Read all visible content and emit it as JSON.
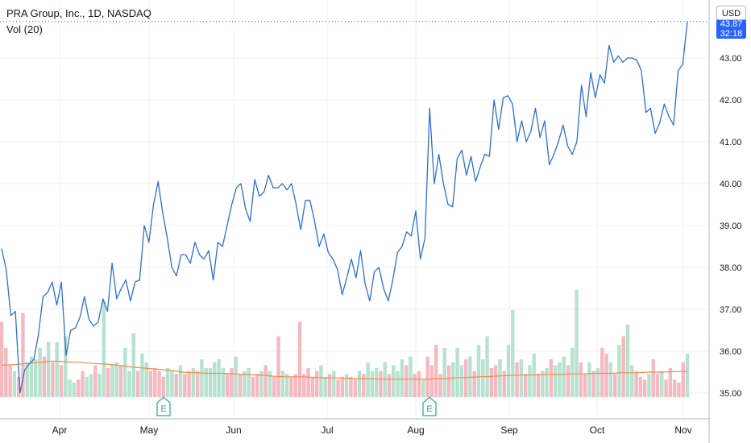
{
  "header": {
    "symbol_line": "PRA Group, Inc., 1D, NASDAQ",
    "indicator_line": "Vol (20)"
  },
  "price_scale": {
    "currency": "USD",
    "last_price": "43.87",
    "countdown": "32:18"
  },
  "colors": {
    "price_line": "#2f6ed4",
    "volume_up": "#b7e2cf",
    "volume_down": "#f7b9c0",
    "volume_ma": "#f08a4b",
    "grid": "#eef0f3",
    "axis_text": "#131722",
    "last_price_bg": "#2962ff",
    "earnings_marker": "#26a69a"
  },
  "chart_data": {
    "type": "line",
    "ylim": [
      34.5,
      44.6
    ],
    "y_ticks": [
      "35.00",
      "36.00",
      "37.00",
      "38.00",
      "39.00",
      "40.00",
      "41.00",
      "42.00",
      "43.00"
    ],
    "x_ticks": [
      "Apr",
      "May",
      "Jun",
      "Jul",
      "Aug",
      "Sep",
      "Oct",
      "Nov"
    ],
    "earnings_markers": [
      "E",
      "E"
    ],
    "series": [
      {
        "values": [
          38.45,
          37.95,
          36.85,
          36.95,
          35.0,
          35.55,
          35.7,
          35.8,
          36.4,
          37.3,
          37.4,
          37.65,
          37.1,
          37.65,
          35.9,
          36.5,
          36.55,
          36.8,
          37.3,
          36.75,
          36.6,
          36.7,
          37.25,
          36.95,
          38.1,
          37.25,
          37.5,
          37.7,
          37.2,
          37.65,
          37.7,
          39.0,
          38.6,
          39.5,
          40.05,
          39.3,
          38.7,
          38.0,
          37.8,
          38.3,
          38.3,
          38.1,
          38.6,
          38.3,
          38.2,
          38.4,
          37.7,
          38.6,
          38.5,
          39.0,
          39.5,
          39.9,
          40.0,
          39.4,
          39.1,
          40.1,
          39.7,
          39.8,
          40.2,
          39.9,
          39.9,
          40.0,
          39.85,
          40.0,
          39.5,
          38.9,
          39.6,
          39.6,
          39.1,
          38.5,
          38.8,
          38.35,
          38.2,
          37.95,
          37.35,
          37.75,
          38.2,
          37.75,
          38.4,
          37.6,
          37.2,
          37.9,
          38.0,
          37.5,
          37.2,
          37.7,
          38.35,
          38.5,
          38.85,
          38.75,
          39.35,
          38.2,
          38.7,
          41.8,
          40.0,
          40.7,
          40.0,
          39.5,
          39.45,
          40.6,
          40.8,
          40.2,
          40.65,
          40.05,
          40.4,
          40.7,
          40.65,
          42.0,
          41.3,
          42.05,
          42.1,
          41.9,
          41.0,
          41.5,
          41.0,
          41.25,
          41.8,
          41.1,
          41.5,
          40.45,
          40.7,
          41.0,
          41.4,
          40.9,
          40.7,
          41.0,
          42.35,
          41.6,
          42.65,
          42.05,
          42.6,
          42.4,
          43.3,
          42.9,
          43.05,
          42.9,
          43.0,
          43.0,
          42.95,
          42.7,
          41.7,
          41.8,
          41.2,
          41.45,
          41.9,
          41.6,
          41.4,
          42.7,
          42.85,
          43.87
        ]
      }
    ],
    "volume": [
      {
        "v": 1.3,
        "d": 1
      },
      {
        "v": 0.85,
        "d": 1
      },
      {
        "v": 0.55,
        "d": 1
      },
      {
        "v": 0.45,
        "d": 0
      },
      {
        "v": 0.35,
        "d": 1
      },
      {
        "v": 1.45,
        "d": 1
      },
      {
        "v": 0.6,
        "d": 0
      },
      {
        "v": 0.7,
        "d": 0
      },
      {
        "v": 0.65,
        "d": 0
      },
      {
        "v": 0.85,
        "d": 0
      },
      {
        "v": 0.7,
        "d": 1
      },
      {
        "v": 0.95,
        "d": 0
      },
      {
        "v": 0.6,
        "d": 1
      },
      {
        "v": 0.95,
        "d": 0
      },
      {
        "v": 0.55,
        "d": 1
      },
      {
        "v": 1.05,
        "d": 0
      },
      {
        "v": 0.3,
        "d": 0
      },
      {
        "v": 0.25,
        "d": 0
      },
      {
        "v": 0.3,
        "d": 1
      },
      {
        "v": 0.45,
        "d": 1
      },
      {
        "v": 0.35,
        "d": 0
      },
      {
        "v": 0.4,
        "d": 0
      },
      {
        "v": 0.55,
        "d": 1
      },
      {
        "v": 0.4,
        "d": 0
      },
      {
        "v": 1.65,
        "d": 0
      },
      {
        "v": 0.5,
        "d": 1
      },
      {
        "v": 0.55,
        "d": 0
      },
      {
        "v": 0.6,
        "d": 0
      },
      {
        "v": 0.55,
        "d": 1
      },
      {
        "v": 0.85,
        "d": 0
      },
      {
        "v": 0.45,
        "d": 0
      },
      {
        "v": 1.1,
        "d": 0
      },
      {
        "v": 0.45,
        "d": 1
      },
      {
        "v": 0.75,
        "d": 0
      },
      {
        "v": 0.6,
        "d": 0
      },
      {
        "v": 0.45,
        "d": 1
      },
      {
        "v": 0.5,
        "d": 1
      },
      {
        "v": 0.45,
        "d": 1
      },
      {
        "v": 0.35,
        "d": 1
      },
      {
        "v": 0.5,
        "d": 0
      },
      {
        "v": 0.45,
        "d": 0
      },
      {
        "v": 0.4,
        "d": 1
      },
      {
        "v": 0.55,
        "d": 0
      },
      {
        "v": 0.4,
        "d": 1
      },
      {
        "v": 0.45,
        "d": 1
      },
      {
        "v": 0.5,
        "d": 0
      },
      {
        "v": 0.45,
        "d": 1
      },
      {
        "v": 0.65,
        "d": 0
      },
      {
        "v": 0.5,
        "d": 0
      },
      {
        "v": 0.5,
        "d": 0
      },
      {
        "v": 0.6,
        "d": 0
      },
      {
        "v": 0.65,
        "d": 0
      },
      {
        "v": 0.5,
        "d": 0
      },
      {
        "v": 0.4,
        "d": 1
      },
      {
        "v": 0.5,
        "d": 1
      },
      {
        "v": 0.7,
        "d": 0
      },
      {
        "v": 0.4,
        "d": 1
      },
      {
        "v": 0.45,
        "d": 0
      },
      {
        "v": 0.5,
        "d": 0
      },
      {
        "v": 0.35,
        "d": 1
      },
      {
        "v": 0.4,
        "d": 1
      },
      {
        "v": 0.45,
        "d": 0
      },
      {
        "v": 0.55,
        "d": 1
      },
      {
        "v": 0.45,
        "d": 0
      },
      {
        "v": 0.35,
        "d": 1
      },
      {
        "v": 1.05,
        "d": 1
      },
      {
        "v": 0.45,
        "d": 0
      },
      {
        "v": 0.4,
        "d": 0
      },
      {
        "v": 0.35,
        "d": 1
      },
      {
        "v": 0.4,
        "d": 1
      },
      {
        "v": 1.3,
        "d": 1
      },
      {
        "v": 0.4,
        "d": 1
      },
      {
        "v": 0.5,
        "d": 1
      },
      {
        "v": 0.35,
        "d": 1
      },
      {
        "v": 0.45,
        "d": 1
      },
      {
        "v": 0.55,
        "d": 0
      },
      {
        "v": 0.35,
        "d": 0
      },
      {
        "v": 0.4,
        "d": 1
      },
      {
        "v": 0.45,
        "d": 0
      },
      {
        "v": 0.3,
        "d": 1
      },
      {
        "v": 0.35,
        "d": 1
      },
      {
        "v": 0.4,
        "d": 0
      },
      {
        "v": 0.35,
        "d": 1
      },
      {
        "v": 0.3,
        "d": 1
      },
      {
        "v": 0.45,
        "d": 0
      },
      {
        "v": 0.4,
        "d": 1
      },
      {
        "v": 0.6,
        "d": 0
      },
      {
        "v": 0.45,
        "d": 0
      },
      {
        "v": 0.5,
        "d": 0
      },
      {
        "v": 0.45,
        "d": 1
      },
      {
        "v": 0.6,
        "d": 0
      },
      {
        "v": 0.4,
        "d": 1
      },
      {
        "v": 0.55,
        "d": 0
      },
      {
        "v": 0.45,
        "d": 0
      },
      {
        "v": 0.65,
        "d": 0
      },
      {
        "v": 0.55,
        "d": 1
      },
      {
        "v": 0.7,
        "d": 0
      },
      {
        "v": 0.4,
        "d": 1
      },
      {
        "v": 0.45,
        "d": 1
      },
      {
        "v": 0.3,
        "d": 0
      },
      {
        "v": 0.7,
        "d": 1
      },
      {
        "v": 0.55,
        "d": 1
      },
      {
        "v": 0.9,
        "d": 1
      },
      {
        "v": 0.4,
        "d": 1
      },
      {
        "v": 0.85,
        "d": 0
      },
      {
        "v": 0.55,
        "d": 1
      },
      {
        "v": 0.6,
        "d": 0
      },
      {
        "v": 0.85,
        "d": 0
      },
      {
        "v": 0.55,
        "d": 0
      },
      {
        "v": 0.65,
        "d": 1
      },
      {
        "v": 0.7,
        "d": 0
      },
      {
        "v": 0.45,
        "d": 1
      },
      {
        "v": 0.9,
        "d": 0
      },
      {
        "v": 0.65,
        "d": 0
      },
      {
        "v": 1.05,
        "d": 0
      },
      {
        "v": 0.5,
        "d": 1
      },
      {
        "v": 0.55,
        "d": 1
      },
      {
        "v": 0.65,
        "d": 0
      },
      {
        "v": 0.45,
        "d": 1
      },
      {
        "v": 0.9,
        "d": 0
      },
      {
        "v": 1.5,
        "d": 0
      },
      {
        "v": 0.6,
        "d": 1
      },
      {
        "v": 0.65,
        "d": 0
      },
      {
        "v": 0.4,
        "d": 1
      },
      {
        "v": 0.55,
        "d": 0
      },
      {
        "v": 0.75,
        "d": 0
      },
      {
        "v": 0.4,
        "d": 1
      },
      {
        "v": 0.45,
        "d": 0
      },
      {
        "v": 0.5,
        "d": 0
      },
      {
        "v": 0.65,
        "d": 1
      },
      {
        "v": 0.55,
        "d": 0
      },
      {
        "v": 0.6,
        "d": 0
      },
      {
        "v": 0.7,
        "d": 0
      },
      {
        "v": 0.55,
        "d": 1
      },
      {
        "v": 0.85,
        "d": 0
      },
      {
        "v": 1.85,
        "d": 0
      },
      {
        "v": 0.6,
        "d": 1
      },
      {
        "v": 0.4,
        "d": 1
      },
      {
        "v": 0.6,
        "d": 0
      },
      {
        "v": 0.45,
        "d": 1
      },
      {
        "v": 0.5,
        "d": 0
      },
      {
        "v": 0.85,
        "d": 1
      },
      {
        "v": 0.75,
        "d": 1
      },
      {
        "v": 0.6,
        "d": 0
      },
      {
        "v": 0.4,
        "d": 1
      },
      {
        "v": 0.9,
        "d": 0
      },
      {
        "v": 1.05,
        "d": 1
      },
      {
        "v": 1.25,
        "d": 0
      },
      {
        "v": 0.55,
        "d": 0
      },
      {
        "v": 0.45,
        "d": 1
      },
      {
        "v": 0.35,
        "d": 1
      },
      {
        "v": 0.3,
        "d": 1
      },
      {
        "v": 0.4,
        "d": 0
      },
      {
        "v": 0.65,
        "d": 1
      },
      {
        "v": 0.4,
        "d": 1
      },
      {
        "v": 0.45,
        "d": 0
      },
      {
        "v": 0.3,
        "d": 1
      },
      {
        "v": 0.5,
        "d": 1
      },
      {
        "v": 0.3,
        "d": 1
      },
      {
        "v": 0.25,
        "d": 1
      },
      {
        "v": 0.6,
        "d": 1
      },
      {
        "v": 0.75,
        "d": 0
      }
    ],
    "volume_ma": [
      0.55,
      0.56,
      0.58,
      0.6,
      0.62,
      0.61,
      0.6,
      0.58,
      0.57,
      0.55,
      0.52,
      0.5,
      0.48,
      0.46,
      0.43,
      0.42,
      0.41,
      0.41,
      0.4,
      0.39,
      0.38,
      0.36,
      0.35,
      0.35,
      0.34,
      0.33,
      0.33,
      0.32,
      0.32,
      0.31,
      0.31,
      0.31,
      0.31,
      0.31,
      0.32,
      0.33,
      0.34,
      0.35,
      0.36,
      0.37,
      0.38,
      0.38,
      0.39,
      0.39,
      0.4,
      0.4,
      0.41,
      0.41,
      0.42,
      0.42,
      0.43,
      0.43,
      0.44,
      0.44
    ]
  }
}
